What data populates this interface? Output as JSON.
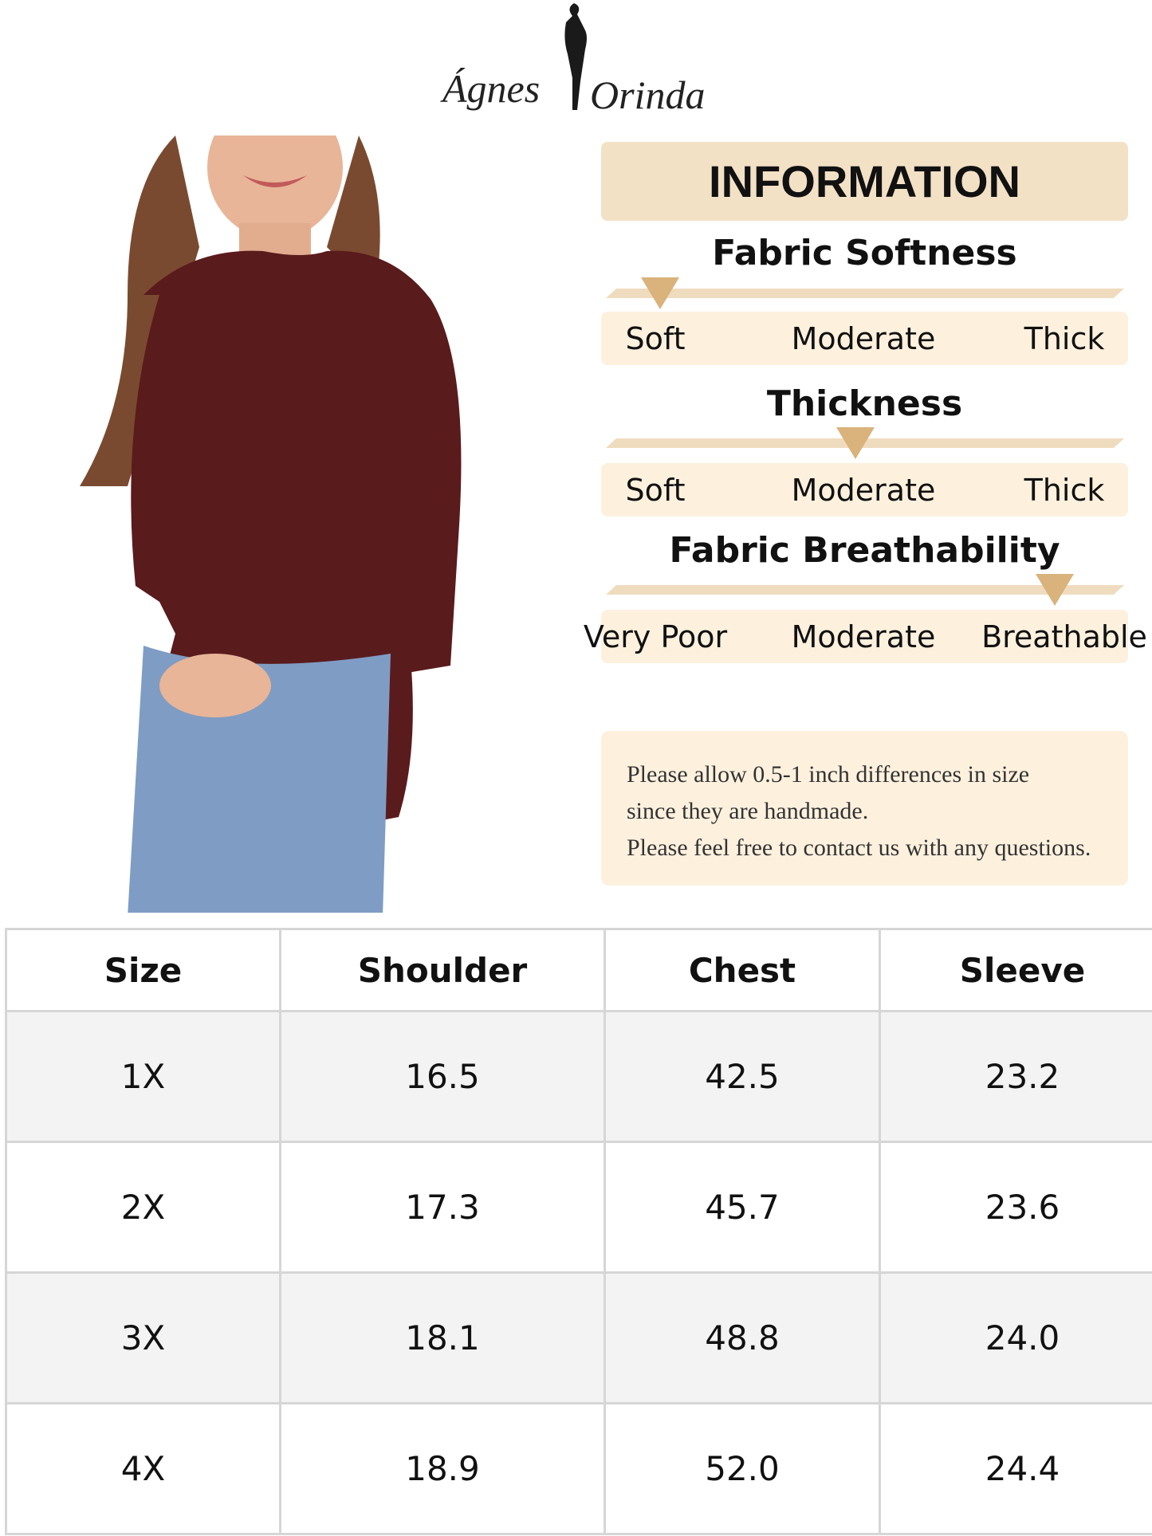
{
  "brand": {
    "left": "Ágnes",
    "right": "Orinda"
  },
  "info": {
    "title": "INFORMATION",
    "metrics": [
      {
        "name": "Fabric Softness",
        "labels": [
          "Soft",
          "Moderate",
          "Thick"
        ],
        "indicator": "Soft"
      },
      {
        "name": "Thickness",
        "labels": [
          "Soft",
          "Moderate",
          "Thick"
        ],
        "indicator": "Moderate"
      },
      {
        "name": "Fabric Breathability",
        "labels": [
          "Very Poor",
          "Moderate",
          "Breathable"
        ],
        "indicator": "Breathable"
      }
    ],
    "note": [
      "Please allow 0.5-1 inch differences in size",
      "since they are handmade.",
      "Please feel free to contact us with any questions."
    ]
  },
  "table": {
    "header": [
      "Size",
      "Shoulder",
      "Chest",
      "Sleeve"
    ],
    "rows": [
      [
        "1X",
        "16.5",
        "42.5",
        "23.2"
      ],
      [
        "2X",
        "17.3",
        "45.7",
        "23.6"
      ],
      [
        "3X",
        "18.1",
        "48.8",
        "24.0"
      ],
      [
        "4X",
        "18.9",
        "52.0",
        "24.4"
      ]
    ]
  }
}
